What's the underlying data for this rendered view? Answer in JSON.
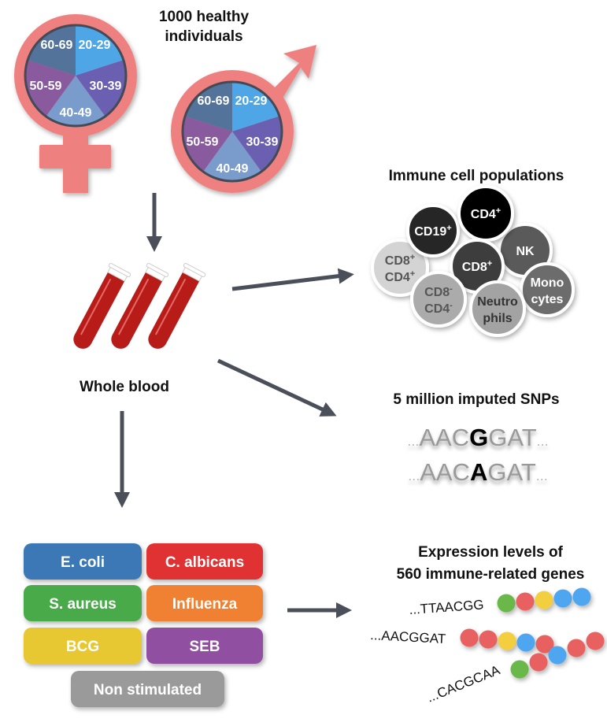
{
  "cohort": {
    "title_line1": "1000 healthy",
    "title_line2": "individuals",
    "age_groups": [
      "20-29",
      "30-39",
      "40-49",
      "50-59",
      "60-69"
    ],
    "age_colors": [
      "#4fa6e6",
      "#6a5fb0",
      "#7a9ccc",
      "#8a5a9e",
      "#53739a"
    ],
    "symbol_color": "#ee8080",
    "female_icon": "female-symbol-icon",
    "male_icon": "male-symbol-icon"
  },
  "blood": {
    "label": "Whole blood",
    "icon": "test-tubes-icon"
  },
  "immune": {
    "title": "Immune cell populations",
    "cells": [
      {
        "line1": "CD8",
        "sup1": "+",
        "line2": "CD4",
        "sup2": "+",
        "fill": "#d4d4d4",
        "text": "#555555"
      },
      {
        "line1": "CD19",
        "sup1": "+",
        "fill": "#262626",
        "text": "#ffffff"
      },
      {
        "line1": "NK",
        "fill": "#5a5a5a",
        "text": "#ffffff"
      },
      {
        "line1": "CD4",
        "sup1": "+",
        "fill": "#000000",
        "text": "#ffffff"
      },
      {
        "line1": "CD8",
        "sup1": "+",
        "fill": "#3c3c3c",
        "text": "#ffffff"
      },
      {
        "line1": "Mono",
        "line2": "cytes",
        "fill": "#6c6c6c",
        "text": "#ffffff"
      },
      {
        "line1": "CD8",
        "sup1": "-",
        "line2": "CD4",
        "sup2": "-",
        "fill": "#ababab",
        "text": "#555555"
      },
      {
        "line1": "Neutro",
        "line2": "phils",
        "fill": "#a3a3a3",
        "text": "#333333"
      }
    ]
  },
  "snps": {
    "title": "5 million imputed SNPs",
    "rows": [
      {
        "prefix": "...",
        "before": "AAC",
        "allele": "G",
        "after": "GAT",
        "suffix": "..."
      },
      {
        "prefix": "...",
        "before": "AAC",
        "allele": "A",
        "after": "GAT",
        "suffix": "..."
      }
    ]
  },
  "stimuli": [
    {
      "label": "E. coli",
      "color": "#3a78b5"
    },
    {
      "label": "C. albicans",
      "color": "#e03030"
    },
    {
      "label": "S. aureus",
      "color": "#4aaa4a"
    },
    {
      "label": "Influenza",
      "color": "#f08030"
    },
    {
      "label": "BCG",
      "color": "#e8c830"
    },
    {
      "label": "SEB",
      "color": "#9050a0"
    },
    {
      "label": "Non stimulated",
      "color": "#9a9a9a"
    }
  ],
  "expression": {
    "title_line1": "Expression levels of",
    "title_line2": "560 immune-related genes",
    "bead_colors": {
      "green": "#6ab84a",
      "red": "#e86060",
      "yellow": "#f3cf40",
      "blue": "#4fa6f0"
    },
    "rows": [
      {
        "sequence": "...TTAACGG",
        "beads": [
          "green",
          "red",
          "yellow",
          "blue",
          "blue"
        ]
      },
      {
        "sequence": "...AACGGAT",
        "beads": [
          "red",
          "red",
          "yellow",
          "blue",
          "red"
        ]
      },
      {
        "sequence": "...CACGCAA",
        "beads": [
          "green",
          "red",
          "blue",
          "red",
          "red"
        ]
      }
    ]
  },
  "arrow_color": "#4a4f5a"
}
